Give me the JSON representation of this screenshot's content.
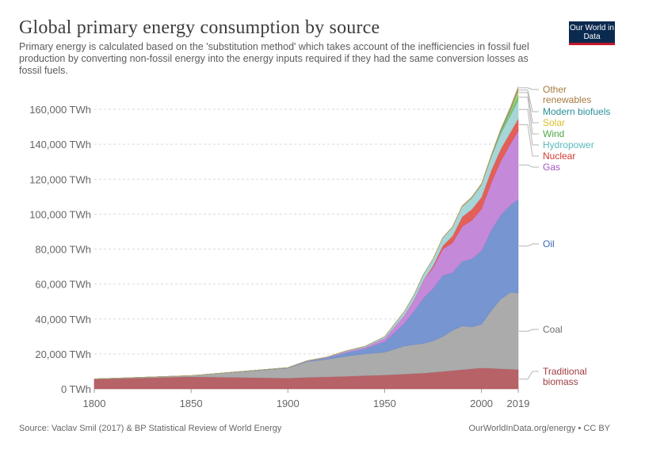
{
  "header": {
    "title": "Global primary energy consumption by source",
    "subtitle": "Primary energy is calculated based on the 'substitution method' which takes account of the inefficiencies in fossil fuel production by converting non-fossil energy into the energy inputs required if they had the same conversion losses as fossil fuels.",
    "logo_text": "Our World in Data"
  },
  "footer": {
    "source": "Source: Vaclav Smil (2017) & BP Statistical Review of World Energy",
    "link": "OurWorldInData.org/energy • CC BY"
  },
  "chart_data": {
    "type": "area",
    "stacked": true,
    "title": "Global primary energy consumption by source",
    "unit": "TWh",
    "ylim": [
      0,
      170000
    ],
    "yticks": [
      0,
      20000,
      40000,
      60000,
      80000,
      100000,
      120000,
      140000,
      160000
    ],
    "ytick_labels": [
      "0 TWh",
      "20,000 TWh",
      "40,000 TWh",
      "60,000 TWh",
      "80,000 TWh",
      "100,000 TWh",
      "120,000 TWh",
      "140,000 TWh",
      "160,000 TWh"
    ],
    "xlim": [
      1800,
      2019
    ],
    "xticks": [
      1800,
      1850,
      1900,
      1950,
      2000,
      2019
    ],
    "xtick_labels": [
      "1800",
      "1850",
      "1900",
      "1950",
      "2000",
      "2019"
    ],
    "grid": "horizontal dashed",
    "legend": "right, inline labels at series ends",
    "x": [
      1800,
      1850,
      1900,
      1910,
      1920,
      1930,
      1940,
      1950,
      1960,
      1965,
      1970,
      1975,
      1980,
      1985,
      1990,
      1995,
      2000,
      2005,
      2010,
      2015,
      2019
    ],
    "series": [
      {
        "name": "Traditional biomass",
        "color": "#b0555a",
        "values": [
          5600,
          7000,
          6200,
          6600,
          6900,
          7200,
          7600,
          8000,
          8500,
          8800,
          9000,
          9500,
          10000,
          10500,
          11000,
          11500,
          12000,
          11800,
          11500,
          11300,
          11100
        ]
      },
      {
        "name": "Coal",
        "color": "#a4a4a4",
        "values": [
          100,
          570,
          5700,
          9000,
          10000,
          11500,
          12500,
          13000,
          16000,
          16500,
          17000,
          18000,
          20000,
          23000,
          25000,
          24000,
          25000,
          33000,
          40000,
          44000,
          43800
        ]
      },
      {
        "name": "Oil",
        "color": "#6b8ccc",
        "values": [
          0,
          0,
          180,
          300,
          900,
          2000,
          3000,
          6000,
          13000,
          19000,
          26000,
          30000,
          35000,
          33000,
          37000,
          39000,
          42000,
          46000,
          48000,
          50000,
          53600
        ]
      },
      {
        "name": "Gas",
        "color": "#c07fd6",
        "values": [
          0,
          0,
          60,
          150,
          250,
          700,
          900,
          2000,
          4500,
          6500,
          10000,
          12000,
          15000,
          17000,
          20000,
          22000,
          24000,
          27000,
          31000,
          35000,
          39300
        ]
      },
      {
        "name": "Nuclear",
        "color": "#e0534a",
        "values": [
          0,
          0,
          0,
          0,
          0,
          0,
          0,
          0,
          0,
          100,
          200,
          1100,
          2000,
          4000,
          5500,
          6300,
          6800,
          7200,
          7000,
          6700,
          6900
        ]
      },
      {
        "name": "Hydropower",
        "color": "#9ed3d5",
        "values": [
          0,
          0,
          0,
          100,
          150,
          300,
          400,
          900,
          2000,
          2500,
          3200,
          3800,
          4500,
          5000,
          5800,
          6500,
          7000,
          7500,
          8700,
          9600,
          10500
        ]
      },
      {
        "name": "Wind",
        "color": "#6fbf6b",
        "values": [
          0,
          0,
          0,
          0,
          0,
          0,
          0,
          0,
          0,
          0,
          0,
          0,
          0,
          0,
          10,
          20,
          80,
          300,
          900,
          2100,
          3500
        ]
      },
      {
        "name": "Solar",
        "color": "#e8d64f",
        "values": [
          0,
          0,
          0,
          0,
          0,
          0,
          0,
          0,
          0,
          0,
          0,
          0,
          0,
          0,
          0,
          0,
          5,
          10,
          100,
          650,
          1800
        ]
      },
      {
        "name": "Modern biofuels",
        "color": "#3aa0ac",
        "values": [
          0,
          0,
          0,
          0,
          0,
          0,
          0,
          0,
          0,
          0,
          0,
          0,
          0,
          10,
          90,
          110,
          120,
          300,
          800,
          1000,
          1100
        ]
      },
      {
        "name": "Other renewables",
        "color": "#c19a5b",
        "values": [
          0,
          0,
          0,
          0,
          0,
          0,
          0,
          0,
          0,
          0,
          0,
          0,
          150,
          250,
          350,
          400,
          500,
          600,
          800,
          1100,
          1400
        ]
      }
    ],
    "labels": [
      {
        "text": "Other renewables",
        "lines": [
          "Other",
          "renewables"
        ],
        "color": "#a67a3f"
      },
      {
        "text": "Modern biofuels",
        "lines": [
          "Modern biofuels"
        ],
        "color": "#2a8f9b"
      },
      {
        "text": "Solar",
        "lines": [
          "Solar"
        ],
        "color": "#d9c12a"
      },
      {
        "text": "Wind",
        "lines": [
          "Wind"
        ],
        "color": "#4ea84a"
      },
      {
        "text": "Hydropower",
        "lines": [
          "Hydropower"
        ],
        "color": "#59b8bf"
      },
      {
        "text": "Nuclear",
        "lines": [
          "Nuclear"
        ],
        "color": "#d43a31"
      },
      {
        "text": "Gas",
        "lines": [
          "Gas"
        ],
        "color": "#a355c4"
      },
      {
        "text": "Oil",
        "lines": [
          "Oil"
        ],
        "color": "#3b69b3"
      },
      {
        "text": "Coal",
        "lines": [
          "Coal"
        ],
        "color": "#6e6e6e"
      },
      {
        "text": "Traditional biomass",
        "lines": [
          "Traditional",
          "biomass"
        ],
        "color": "#a03c40"
      }
    ]
  }
}
